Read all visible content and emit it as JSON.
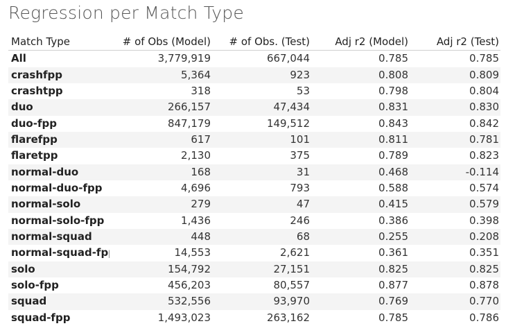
{
  "title": "Regression per Match Type",
  "chart_data": {
    "type": "table",
    "title": "Regression per Match Type",
    "columns": [
      "Match Type",
      "# of Obs (Model)",
      "# of Obs. (Test)",
      "Adj r2 (Model)",
      "Adj r2 (Test)"
    ],
    "rows": [
      [
        "All",
        "3,779,919",
        "667,044",
        "0.785",
        "0.785"
      ],
      [
        "crashfpp",
        "5,364",
        "923",
        "0.808",
        "0.809"
      ],
      [
        "crashtpp",
        "318",
        "53",
        "0.798",
        "0.804"
      ],
      [
        "duo",
        "266,157",
        "47,434",
        "0.831",
        "0.830"
      ],
      [
        "duo-fpp",
        "847,179",
        "149,512",
        "0.843",
        "0.842"
      ],
      [
        "flarefpp",
        "617",
        "101",
        "0.811",
        "0.781"
      ],
      [
        "flaretpp",
        "2,130",
        "375",
        "0.789",
        "0.823"
      ],
      [
        "normal-duo",
        "168",
        "31",
        "0.468",
        "-0.114"
      ],
      [
        "normal-duo-fpp",
        "4,696",
        "793",
        "0.588",
        "0.574"
      ],
      [
        "normal-solo",
        "279",
        "47",
        "0.415",
        "0.579"
      ],
      [
        "normal-solo-fpp",
        "1,436",
        "246",
        "0.386",
        "0.398"
      ],
      [
        "normal-squad",
        "448",
        "68",
        "0.255",
        "0.208"
      ],
      [
        "normal-squad-fpp",
        "14,553",
        "2,621",
        "0.361",
        "0.351"
      ],
      [
        "solo",
        "154,792",
        "27,151",
        "0.825",
        "0.825"
      ],
      [
        "solo-fpp",
        "456,203",
        "80,557",
        "0.877",
        "0.878"
      ],
      [
        "squad",
        "532,556",
        "93,970",
        "0.769",
        "0.770"
      ],
      [
        "squad-fpp",
        "1,493,023",
        "263,162",
        "0.785",
        "0.786"
      ]
    ]
  }
}
